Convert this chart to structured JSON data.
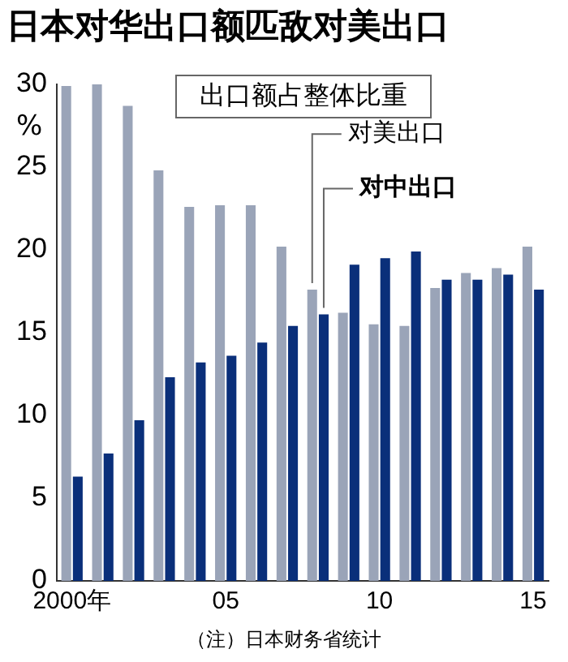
{
  "chart_data": {
    "type": "bar",
    "title": "日本对华出口额匹敌对美出口",
    "subtitle": "出口额占整体比重",
    "ylabel": "%",
    "categories": [
      "2000年",
      null,
      null,
      null,
      null,
      "05",
      null,
      null,
      null,
      null,
      "10",
      null,
      null,
      null,
      null,
      "15"
    ],
    "series": [
      {
        "name": "对美出口",
        "color": "#9aa4b8",
        "values": [
          29.9,
          30,
          28.7,
          24.8,
          22.6,
          22.7,
          22.7,
          20.2,
          17.6,
          16.2,
          15.5,
          15.4,
          17.7,
          18.6,
          18.9,
          20.2
        ]
      },
      {
        "name": "对中出口",
        "color": "#0a2f7a",
        "values": [
          6.3,
          7.7,
          9.7,
          12.3,
          13.2,
          13.6,
          14.4,
          15.4,
          16.1,
          19.1,
          19.5,
          19.9,
          18.2,
          18.2,
          18.5,
          17.6
        ]
      }
    ],
    "ylim": [
      0,
      30
    ],
    "yticks": [
      0,
      5,
      10,
      15,
      20,
      25,
      30
    ],
    "grid": false,
    "legend": false,
    "annotations": [
      "（注）日本财务省统计"
    ]
  }
}
